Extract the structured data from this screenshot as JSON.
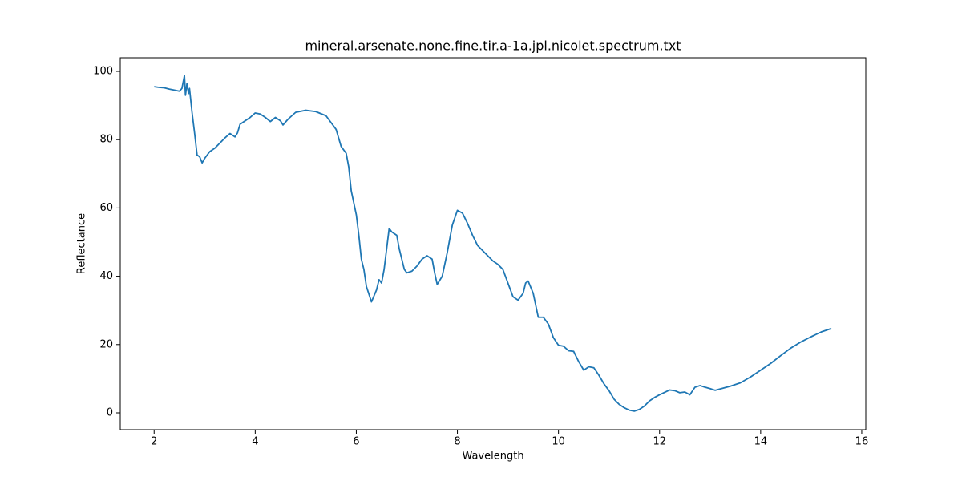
{
  "chart_data": {
    "type": "line",
    "title": "mineral.arsenate.none.fine.tir.a-1a.jpl.nicolet.spectrum.txt",
    "x_label": "Wavelength",
    "y_label": "Reflectance",
    "color": "#1f77b4",
    "xlim": [
      1.33,
      16.08
    ],
    "ylim": [
      -4.93,
      103.99
    ],
    "xticks": [
      2,
      4,
      6,
      8,
      10,
      12,
      14,
      16
    ],
    "yticks": [
      0,
      20,
      40,
      60,
      80,
      100
    ],
    "x": [
      2.0,
      2.1,
      2.2,
      2.3,
      2.4,
      2.5,
      2.55,
      2.6,
      2.62,
      2.65,
      2.68,
      2.7,
      2.75,
      2.8,
      2.85,
      2.9,
      2.95,
      3.0,
      3.1,
      3.2,
      3.3,
      3.4,
      3.5,
      3.6,
      3.65,
      3.7,
      3.8,
      3.9,
      4.0,
      4.1,
      4.2,
      4.3,
      4.4,
      4.5,
      4.55,
      4.65,
      4.8,
      5.0,
      5.2,
      5.4,
      5.5,
      5.6,
      5.7,
      5.8,
      5.85,
      5.9,
      6.0,
      6.05,
      6.1,
      6.15,
      6.2,
      6.3,
      6.4,
      6.45,
      6.5,
      6.55,
      6.6,
      6.65,
      6.7,
      6.8,
      6.85,
      6.9,
      6.95,
      7.0,
      7.1,
      7.2,
      7.3,
      7.4,
      7.5,
      7.55,
      7.6,
      7.7,
      7.8,
      7.9,
      8.0,
      8.1,
      8.2,
      8.3,
      8.4,
      8.5,
      8.6,
      8.7,
      8.8,
      8.9,
      9.0,
      9.1,
      9.2,
      9.3,
      9.35,
      9.4,
      9.5,
      9.6,
      9.7,
      9.8,
      9.9,
      10.0,
      10.1,
      10.2,
      10.3,
      10.4,
      10.5,
      10.6,
      10.7,
      10.8,
      10.9,
      11.0,
      11.1,
      11.2,
      11.3,
      11.4,
      11.5,
      11.6,
      11.7,
      11.8,
      11.9,
      12.0,
      12.1,
      12.2,
      12.3,
      12.4,
      12.5,
      12.6,
      12.7,
      12.8,
      12.9,
      13.0,
      13.1,
      13.2,
      13.4,
      13.6,
      13.8,
      14.0,
      14.2,
      14.4,
      14.6,
      14.8,
      15.0,
      15.2,
      15.4
    ],
    "values": [
      95.5,
      95.3,
      95.2,
      94.8,
      94.5,
      94.2,
      95,
      98.8,
      93,
      96.5,
      93.5,
      95,
      88,
      82,
      75.5,
      75,
      73.2,
      74.5,
      76.5,
      77.5,
      79,
      80.5,
      81.8,
      80.8,
      82,
      84.5,
      85.5,
      86.5,
      87.8,
      87.5,
      86.5,
      85.3,
      86.5,
      85.5,
      84.3,
      86,
      88,
      88.6,
      88.2,
      87,
      85,
      83,
      78,
      76,
      72,
      65,
      58,
      52,
      45,
      42,
      37,
      32.5,
      36,
      39,
      38,
      42,
      48,
      54,
      53,
      52,
      48,
      45,
      42,
      41,
      41.5,
      43,
      45,
      46,
      45,
      41,
      37.6,
      40,
      47,
      55,
      59.3,
      58.5,
      55.5,
      52,
      49,
      47.5,
      46,
      44.5,
      43.5,
      42,
      38,
      34,
      33,
      35,
      38,
      38.6,
      35,
      28,
      28,
      26,
      22,
      19.8,
      19.5,
      18.2,
      18,
      15,
      12.5,
      13.5,
      13.2,
      11,
      8.5,
      6.5,
      4,
      2.5,
      1.5,
      0.8,
      0.5,
      1,
      2,
      3.5,
      4.5,
      5.3,
      6,
      6.7,
      6.5,
      5.9,
      6.1,
      5.3,
      7.5,
      8.0,
      7.5,
      7.1,
      6.6,
      7,
      7.8,
      8.8,
      10.5,
      12.5,
      14.5,
      16.8,
      19,
      20.8,
      22.3,
      23.7,
      24.7
    ]
  }
}
